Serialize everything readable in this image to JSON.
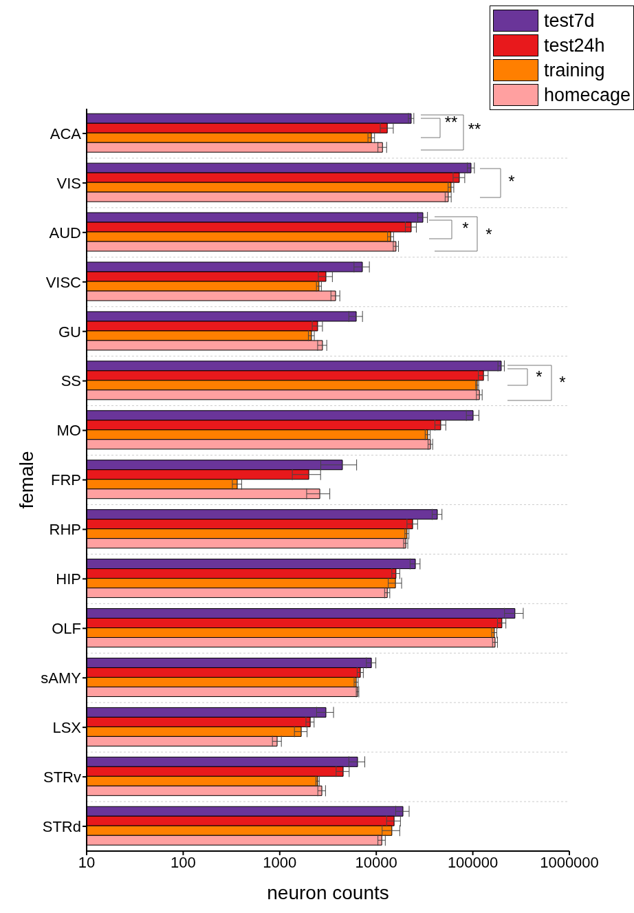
{
  "chart_data": {
    "type": "bar",
    "orientation": "horizontal",
    "xlabel": "neuron counts",
    "ylabel": "female",
    "categories": [
      "ACA",
      "VIS",
      "AUD",
      "VISC",
      "GU",
      "SS",
      "MO",
      "FRP",
      "RHP",
      "HIP",
      "OLF",
      "sAMY",
      "LSX",
      "STRv",
      "STRd"
    ],
    "series": [
      {
        "name": "test7d",
        "color": "#6a3599",
        "values": [
          23000,
          95800,
          30400,
          7180,
          6200,
          197000,
          100700,
          4460,
          42900,
          25400,
          273000,
          8900,
          3010,
          6400,
          18900
        ],
        "errors": [
          1500,
          8000,
          3500,
          1300,
          1000,
          15000,
          15000,
          1800,
          5000,
          3000,
          60000,
          1000,
          600,
          1200,
          3000
        ]
      },
      {
        "name": "test24h",
        "color": "#e8191c",
        "values": [
          13000,
          72500,
          23000,
          3010,
          2470,
          129000,
          46500,
          2000,
          23800,
          16000,
          200000,
          6840,
          2070,
          4540,
          15300
        ],
        "errors": [
          2000,
          10000,
          3000,
          500,
          300,
          15000,
          6000,
          650,
          3000,
          1500,
          20000,
          500,
          200,
          700,
          2500
        ]
      },
      {
        "name": "training",
        "color": "#ff7f00",
        "values": [
          8900,
          59500,
          14100,
          2550,
          2130,
          111000,
          34100,
          363,
          20800,
          15800,
          167000,
          6200,
          1670,
          2470,
          14500
        ],
        "errors": [
          700,
          4000,
          1000,
          150,
          150,
          4000,
          2000,
          40,
          1000,
          2500,
          10000,
          300,
          250,
          100,
          3000
        ]
      },
      {
        "name": "homecage",
        "color": "#ffa0a0",
        "values": [
          11600,
          55700,
          16000,
          3790,
          2770,
          117000,
          36400,
          2600,
          20200,
          13000,
          170000,
          6400,
          940,
          2730,
          11400
        ],
        "errors": [
          1200,
          4000,
          1000,
          400,
          300,
          8000,
          2000,
          700,
          1000,
          800,
          10000,
          200,
          100,
          250,
          1000
        ]
      }
    ],
    "xlim": [
      10,
      1000000
    ],
    "xticks": [
      10,
      100,
      1000,
      10000,
      100000,
      1000000
    ],
    "log": "x",
    "grid": "y",
    "legend": "top right",
    "annotations": [
      "**",
      "**",
      "*",
      "*",
      "*",
      "*",
      "*"
    ]
  }
}
